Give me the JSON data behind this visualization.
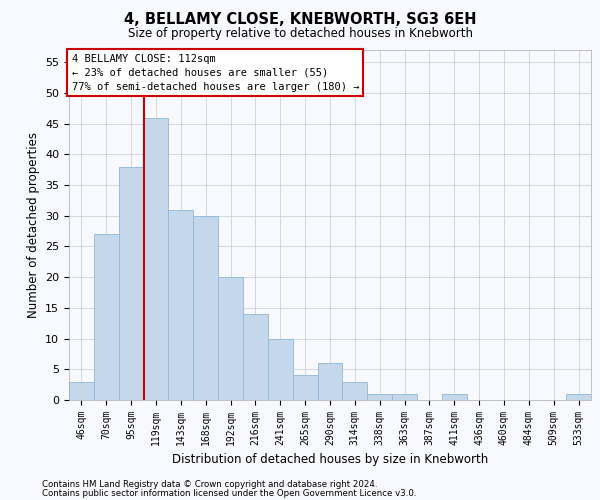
{
  "title1": "4, BELLAMY CLOSE, KNEBWORTH, SG3 6EH",
  "title2": "Size of property relative to detached houses in Knebworth",
  "xlabel": "Distribution of detached houses by size in Knebworth",
  "ylabel": "Number of detached properties",
  "bar_color": "#c5d8eb",
  "bar_edge_color": "#8fb8d8",
  "categories": [
    "46sqm",
    "70sqm",
    "95sqm",
    "119sqm",
    "143sqm",
    "168sqm",
    "192sqm",
    "216sqm",
    "241sqm",
    "265sqm",
    "290sqm",
    "314sqm",
    "338sqm",
    "363sqm",
    "387sqm",
    "411sqm",
    "436sqm",
    "460sqm",
    "484sqm",
    "509sqm",
    "533sqm"
  ],
  "values": [
    3,
    27,
    38,
    46,
    31,
    30,
    20,
    14,
    10,
    4,
    6,
    3,
    1,
    1,
    0,
    1,
    0,
    0,
    0,
    0,
    1
  ],
  "ylim": [
    0,
    57
  ],
  "yticks": [
    0,
    5,
    10,
    15,
    20,
    25,
    30,
    35,
    40,
    45,
    50,
    55
  ],
  "vline_x": 2.5,
  "vline_color": "#cc0000",
  "annotation_line1": "4 BELLAMY CLOSE: 112sqm",
  "annotation_line2": "← 23% of detached houses are smaller (55)",
  "annotation_line3": "77% of semi-detached houses are larger (180) →",
  "annotation_box_color": "#ffffff",
  "annotation_box_edge": "#cc0000",
  "footnote1": "Contains HM Land Registry data © Crown copyright and database right 2024.",
  "footnote2": "Contains public sector information licensed under the Open Government Licence v3.0.",
  "grid_color": "#c8c8d8",
  "bg_color": "#f8f8ff"
}
